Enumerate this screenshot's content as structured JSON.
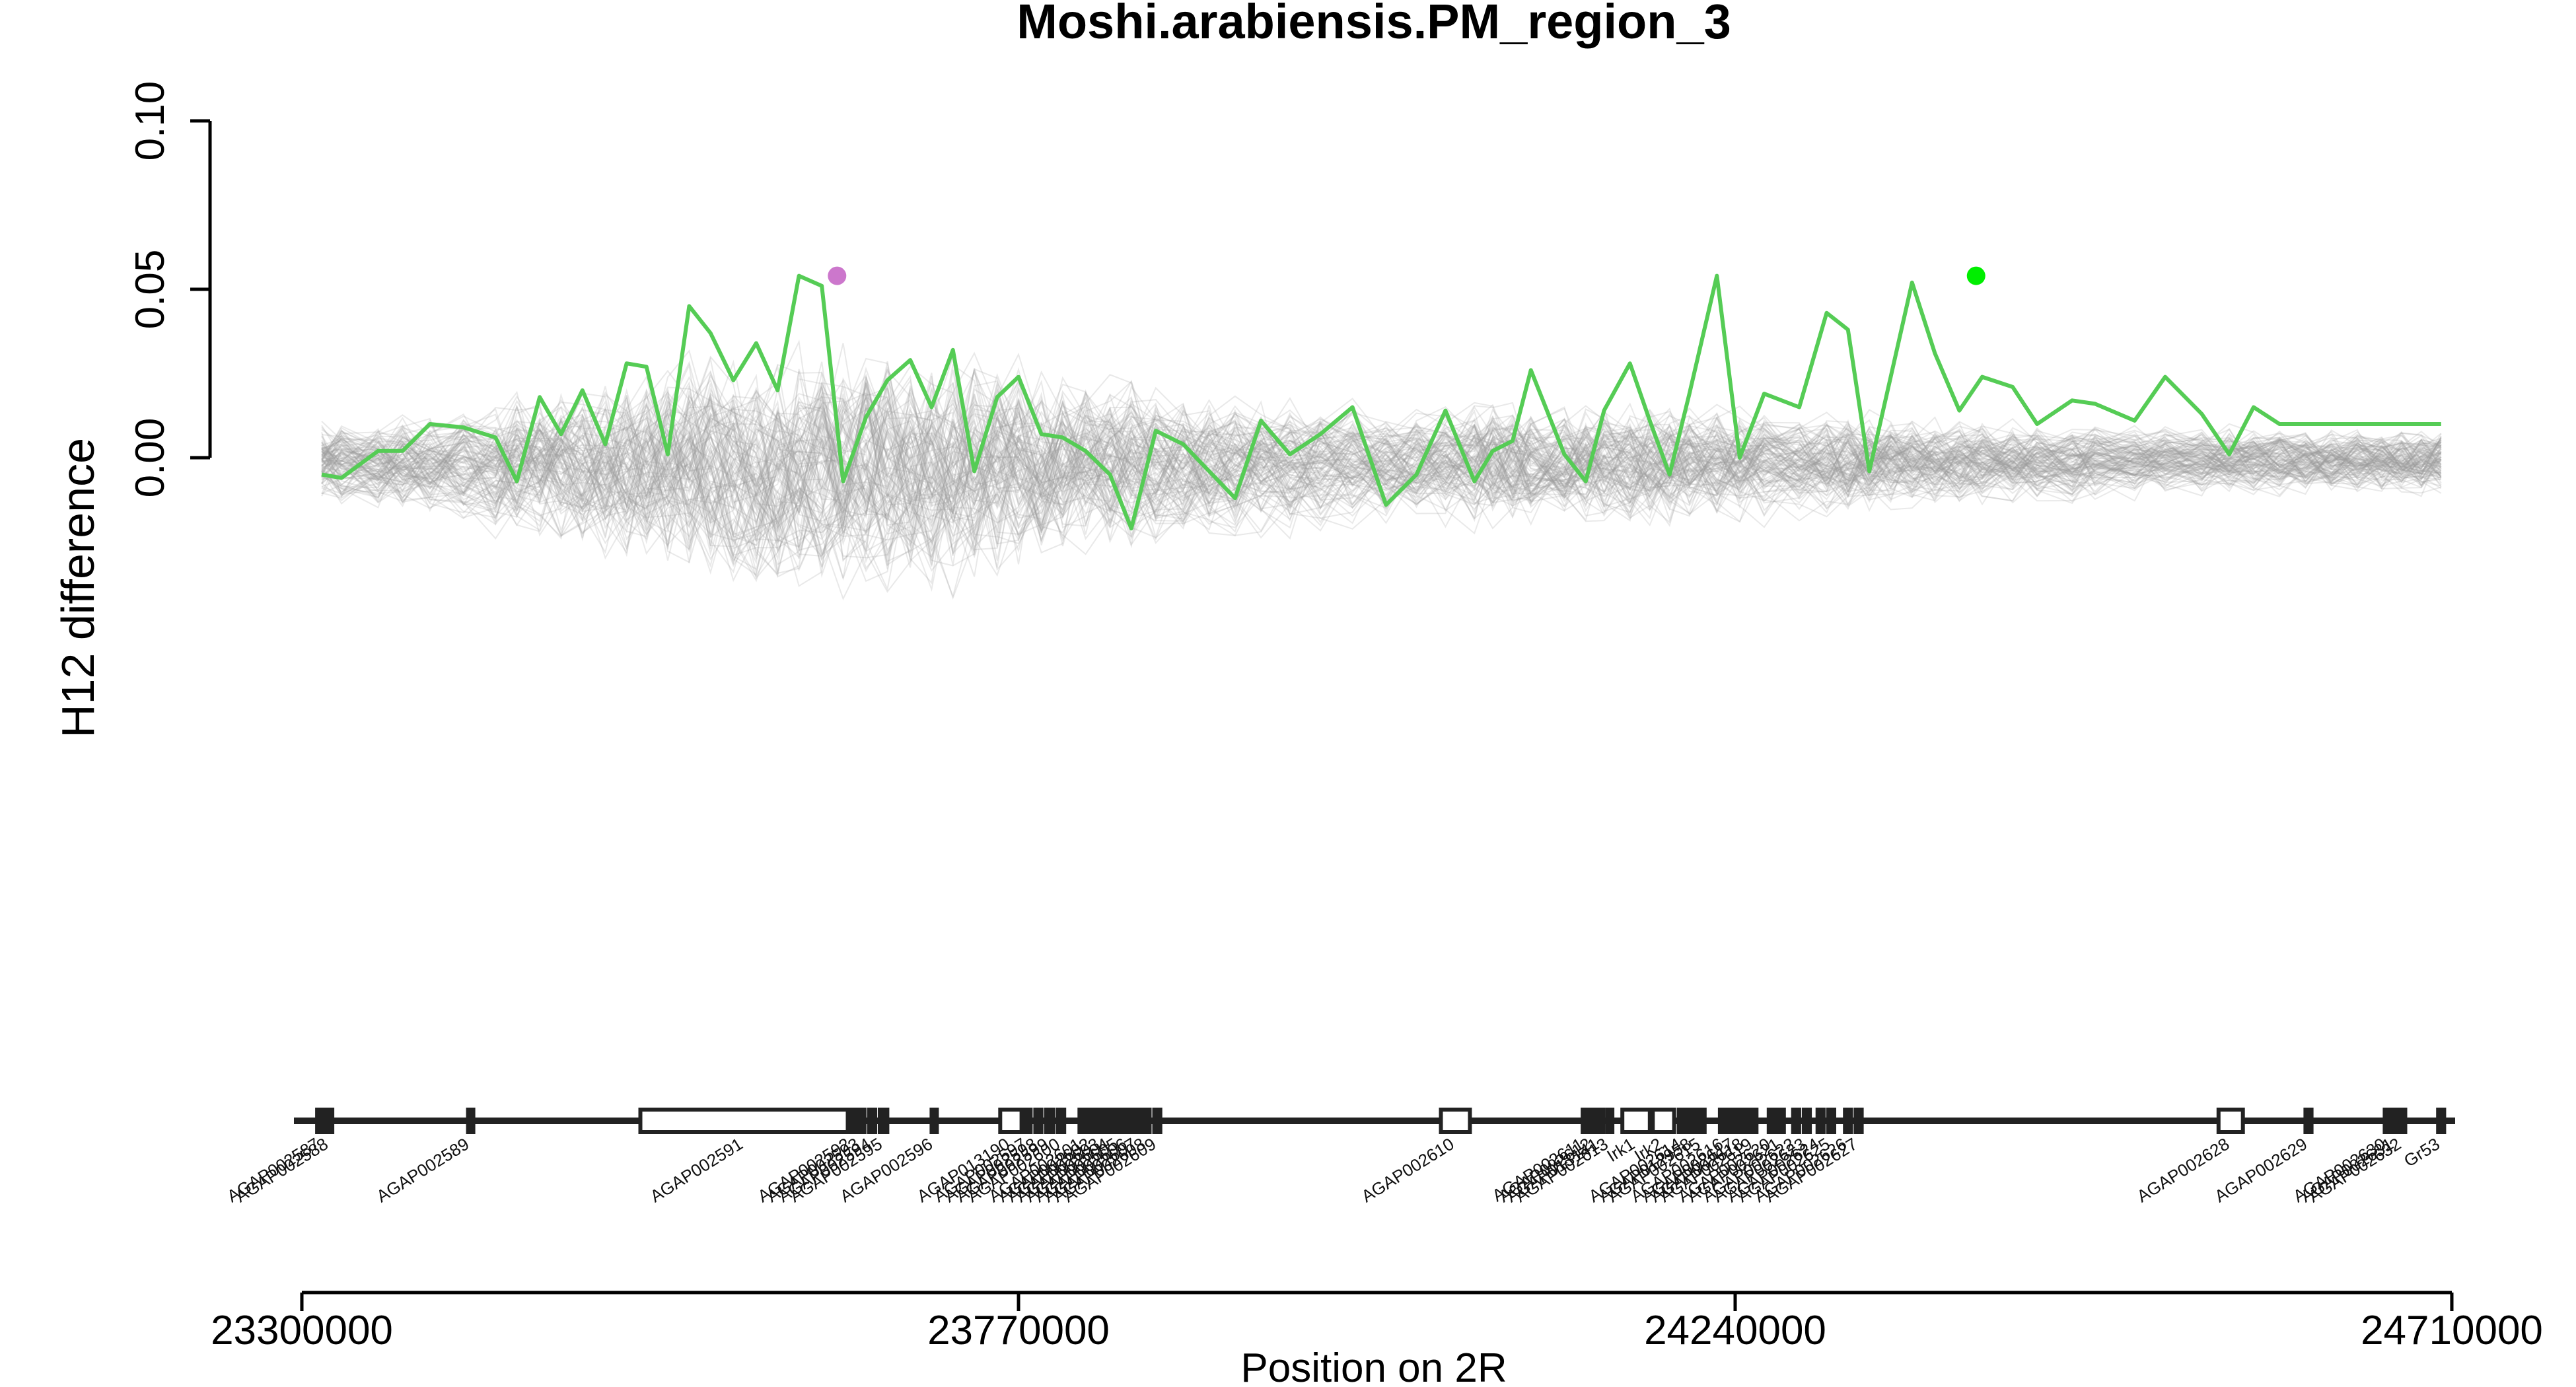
{
  "chart_data": {
    "type": "line",
    "title": "Moshi.arabiensis.PM_region_3",
    "xlabel": "Position on 2R",
    "ylabel": "H12 difference",
    "xlim": [
      23300000,
      24710000
    ],
    "ylim": [
      -0.1,
      0.1
    ],
    "x_ticks": [
      "23300000",
      "23770000",
      "24240000",
      "24710000"
    ],
    "y_ticks": [
      "0.00",
      "0.05",
      "0.10"
    ],
    "colors": {
      "series": "#55cc55",
      "background_lines": "#9a9a9a",
      "left_peak_point": "#cc77cc",
      "right_peak_point": "#00ee00",
      "gene_track": "#222222"
    },
    "series": [
      {
        "x": [
          23313000,
          23326000,
          23350000,
          23366000,
          23384000,
          23406000,
          23427000,
          23441000,
          23456000,
          23470000,
          23484000,
          23499000,
          23513000,
          23526000,
          23540000,
          23554000,
          23568000,
          23583000,
          23598000,
          23612000,
          23626000,
          23641000,
          23655000,
          23670000,
          23684000,
          23699000,
          23713000,
          23727000,
          23741000,
          23756000,
          23770000,
          23785000,
          23799000,
          23814000,
          23830000,
          23844000,
          23860000,
          23878000,
          23895000,
          23912000,
          23929000,
          23948000,
          23968000,
          23989000,
          24011000,
          24031000,
          24050000,
          24069000,
          24081000,
          24094000,
          24106000,
          24128000,
          24142000,
          24154000,
          24171000,
          24184000,
          24197000,
          24210000,
          24228000,
          24243000,
          24259000,
          24282000,
          24300000,
          24314000,
          24328000,
          24342000,
          24356000,
          24371000,
          24387000,
          24402000,
          24422000,
          24438000,
          24461000,
          24476000,
          24502000,
          24522000,
          24546000,
          24564000,
          24580000,
          24597000,
          24614000,
          24631000,
          24648000,
          24664000,
          24677000,
          24690000,
          24703000
        ],
        "y": [
          -0.005,
          -0.006,
          0.002,
          0.002,
          0.01,
          0.009,
          0.006,
          -0.007,
          0.018,
          0.007,
          0.02,
          0.004,
          0.028,
          0.027,
          0.001,
          0.045,
          0.037,
          0.023,
          0.034,
          0.02,
          0.054,
          0.051,
          -0.007,
          0.012,
          0.023,
          0.029,
          0.015,
          0.032,
          -0.004,
          0.018,
          0.024,
          0.007,
          0.006,
          0.002,
          -0.005,
          -0.021,
          0.008,
          0.004,
          -0.004,
          -0.012,
          0.011,
          0.001,
          0.007,
          0.015,
          -0.014,
          -0.005,
          0.014,
          -0.007,
          0.002,
          0.005,
          0.026,
          0.001,
          -0.007,
          0.014,
          0.028,
          0.011,
          -0.005,
          0.019,
          0.054,
          0,
          0.019,
          0.015,
          0.043,
          0.038,
          -0.004,
          0.024,
          0.052,
          0.031,
          0.014,
          0.024,
          0.021,
          0.01,
          0.017,
          0.016,
          0.011,
          0.024,
          0.013,
          0.001,
          0.015,
          0.01,
          0.01,
          0.01,
          0.01,
          0.01,
          0.01,
          0.01,
          0.01
        ]
      }
    ],
    "highlighted_points": [
      {
        "x": 23651000,
        "y": 0.054
      },
      {
        "x": 24398000,
        "y": 0.054
      }
    ],
    "genes": [
      {
        "name": "AGAP002587",
        "start": 23310000,
        "end": 23315000
      },
      {
        "name": "AGAP002588",
        "start": 23316000,
        "end": 23320000
      },
      {
        "name": "AGAP002589",
        "start": 23409000,
        "end": 23412000
      },
      {
        "name": "AGAP002591",
        "start": 23522000,
        "end": 23658000
      },
      {
        "name": "AGAP002592",
        "start": 23659000,
        "end": 23662000
      },
      {
        "name": "AGAP002593",
        "start": 23664000,
        "end": 23669000
      },
      {
        "name": "AGAP002594",
        "start": 23672000,
        "end": 23676000
      },
      {
        "name": "AGAP002595",
        "start": 23679000,
        "end": 23684000
      },
      {
        "name": "AGAP002596",
        "start": 23713000,
        "end": 23716000
      },
      {
        "name": "AGAP013190",
        "start": 23758000,
        "end": 23772000
      },
      {
        "name": "AGAP002597",
        "start": 23774000,
        "end": 23778000
      },
      {
        "name": "AGAP002598",
        "start": 23781000,
        "end": 23785000
      },
      {
        "name": "AGAP002599",
        "start": 23788000,
        "end": 23793000
      },
      {
        "name": "AGAP002600",
        "start": 23796000,
        "end": 23800000
      },
      {
        "name": "AGAP002601",
        "start": 23810000,
        "end": 23814000
      },
      {
        "name": "AGAP002602",
        "start": 23816000,
        "end": 23820000
      },
      {
        "name": "AGAP002603",
        "start": 23822000,
        "end": 23826000
      },
      {
        "name": "AGAP002604",
        "start": 23828000,
        "end": 23832000
      },
      {
        "name": "AGAP002605",
        "start": 23834000,
        "end": 23838000
      },
      {
        "name": "AGAP002606",
        "start": 23840000,
        "end": 23844000
      },
      {
        "name": "AGAP002607",
        "start": 23846000,
        "end": 23850000
      },
      {
        "name": "AGAP002608",
        "start": 23852000,
        "end": 23856000
      },
      {
        "name": "AGAP002609",
        "start": 23859000,
        "end": 23863000
      },
      {
        "name": "AGAP002610",
        "start": 24047000,
        "end": 24066000
      },
      {
        "name": "AGAP002611",
        "start": 24140000,
        "end": 24143000
      },
      {
        "name": "AGAP002612",
        "start": 24145000,
        "end": 24148000
      },
      {
        "name": "AGAP013141",
        "start": 24150000,
        "end": 24153000
      },
      {
        "name": "AGAP002613",
        "start": 24156000,
        "end": 24159000
      },
      {
        "name": "Irk1",
        "start": 24166000,
        "end": 24184000
      },
      {
        "name": "Irk2",
        "start": 24186000,
        "end": 24200000
      },
      {
        "name": "AGAP002614",
        "start": 24203000,
        "end": 24208000
      },
      {
        "name": "AGAP012958",
        "start": 24210000,
        "end": 24214000
      },
      {
        "name": "AGAP002615",
        "start": 24216000,
        "end": 24220000
      },
      {
        "name": "AGAP002616",
        "start": 24230000,
        "end": 24236000
      },
      {
        "name": "AGAP002617",
        "start": 24238000,
        "end": 24242000
      },
      {
        "name": "AGAP002618",
        "start": 24244000,
        "end": 24248000
      },
      {
        "name": "AGAP002619",
        "start": 24250000,
        "end": 24254000
      },
      {
        "name": "AGAP002620",
        "start": 24262000,
        "end": 24266000
      },
      {
        "name": "AGAP002621",
        "start": 24268000,
        "end": 24272000
      },
      {
        "name": "AGAP002622",
        "start": 24278000,
        "end": 24282000
      },
      {
        "name": "AGAP002623",
        "start": 24285000,
        "end": 24289000
      },
      {
        "name": "AGAP002624",
        "start": 24294000,
        "end": 24298000
      },
      {
        "name": "AGAP002625",
        "start": 24301000,
        "end": 24305000
      },
      {
        "name": "AGAP002626",
        "start": 24312000,
        "end": 24316000
      },
      {
        "name": "AGAP002627",
        "start": 24319000,
        "end": 24323000
      },
      {
        "name": "AGAP002628",
        "start": 24557000,
        "end": 24573000
      },
      {
        "name": "AGAP002629",
        "start": 24614000,
        "end": 24618000
      },
      {
        "name": "AGAP002630",
        "start": 24666000,
        "end": 24669000
      },
      {
        "name": "AGAP002631",
        "start": 24671000,
        "end": 24674000
      },
      {
        "name": "AGAP002632",
        "start": 24676000,
        "end": 24679000
      },
      {
        "name": "Gr53",
        "start": 24701000,
        "end": 24705000
      }
    ]
  }
}
